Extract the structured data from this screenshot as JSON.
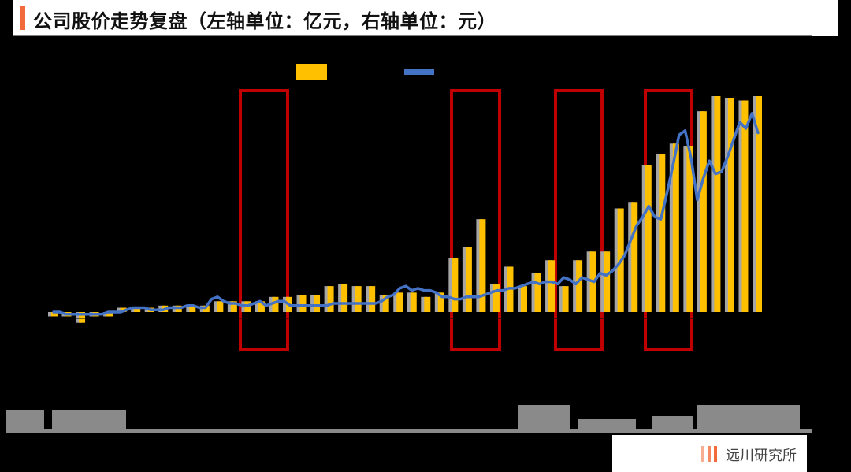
{
  "title": "公司股价走势复盘（左轴单位：亿元，右轴单位：元）",
  "brand": {
    "name": "远川研究所"
  },
  "colors": {
    "bar": "#ffc000",
    "bar_shadow": "#a6a6a6",
    "line": "#4472c4",
    "highlight_box": "#c00000",
    "accent": "#f26b3a"
  },
  "chart_data": {
    "type": "bar+line",
    "title": "公司股价走势复盘（左轴单位：亿元，右轴单位：元）",
    "left_axis_unit": "亿元",
    "right_axis_unit": "元",
    "left_ylim": [
      -5,
      100
    ],
    "right_ylim": [
      -5,
      100
    ],
    "legend": "top-center",
    "grid": false,
    "series": [
      {
        "kind": "bar",
        "axis": "left",
        "values": [
          -2,
          -2,
          -5,
          -2,
          -2,
          2,
          2,
          2,
          3,
          3,
          3,
          3,
          5,
          5,
          5,
          5,
          7,
          7,
          8,
          8,
          12,
          13,
          12,
          12,
          8,
          9,
          9,
          7,
          9,
          25,
          30,
          43,
          13,
          21,
          12,
          18,
          24,
          12,
          24,
          28,
          28,
          48,
          51,
          68,
          73,
          78,
          77,
          93,
          100,
          99,
          98,
          100
        ]
      },
      {
        "kind": "line",
        "axis": "right",
        "values": [
          0,
          0,
          -1,
          -1,
          -1,
          -1,
          -1,
          -1,
          -1,
          0,
          0,
          0,
          1,
          2,
          2,
          2,
          1,
          1,
          1,
          2,
          2,
          2,
          3,
          3,
          2,
          2,
          6,
          7,
          5,
          4,
          4,
          3,
          3,
          4,
          5,
          3,
          4,
          5,
          5,
          3,
          3,
          3,
          3,
          3,
          3,
          3,
          4,
          4,
          4,
          4,
          4,
          4,
          4,
          4,
          5,
          7,
          8,
          11,
          12,
          10,
          11,
          10,
          10,
          9,
          7,
          7,
          6,
          6,
          7,
          7,
          7,
          8,
          9,
          10,
          10,
          11,
          11,
          12,
          13,
          14,
          13,
          14,
          14,
          13,
          16,
          15,
          13,
          16,
          15,
          14,
          18,
          17,
          19,
          22,
          26,
          33,
          40,
          44,
          49,
          44,
          43,
          55,
          68,
          82,
          84,
          71,
          52,
          62,
          70,
          64,
          65,
          72,
          80,
          88,
          85,
          92,
          83
        ]
      }
    ],
    "highlight_periods": 4
  }
}
